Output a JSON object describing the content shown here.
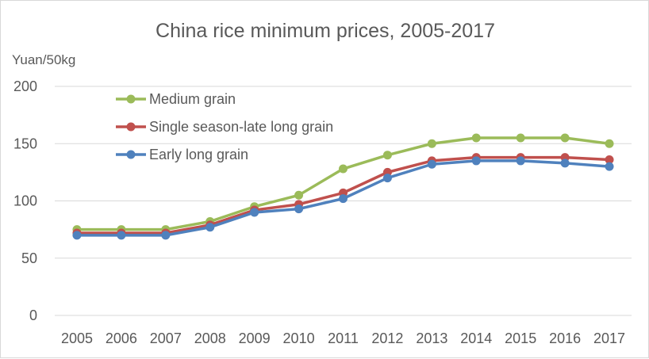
{
  "chart_data": {
    "type": "line",
    "title": "China rice minimum prices, 2005-2017",
    "ylabel": "Yuan/50kg",
    "xlabel": "",
    "ylim": [
      0,
      200
    ],
    "yticks": [
      0,
      50,
      100,
      150,
      200
    ],
    "categories": [
      "2005",
      "2006",
      "2007",
      "2008",
      "2009",
      "2010",
      "2011",
      "2012",
      "2013",
      "2014",
      "2015",
      "2016",
      "2017"
    ],
    "grid": true,
    "legend_position": "top-left",
    "series": [
      {
        "name": "Medium grain",
        "color": "#9bbb59",
        "values": [
          75,
          75,
          75,
          82,
          95,
          105,
          128,
          140,
          150,
          155,
          155,
          155,
          150
        ]
      },
      {
        "name": "Single season-late long grain",
        "color": "#c0504d",
        "values": [
          72,
          72,
          72,
          79,
          92,
          97,
          107,
          125,
          135,
          138,
          138,
          138,
          136
        ]
      },
      {
        "name": "Early long grain",
        "color": "#4f81bd",
        "values": [
          70,
          70,
          70,
          77,
          90,
          93,
          102,
          120,
          132,
          135,
          135,
          133,
          130
        ]
      }
    ]
  }
}
